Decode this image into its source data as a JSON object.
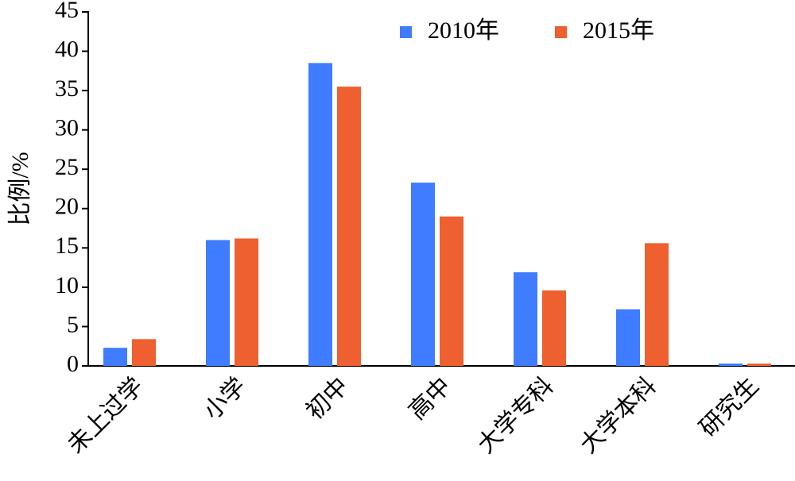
{
  "chart_data": {
    "type": "bar",
    "y_label": "比例/%",
    "categories": [
      "未上过学",
      "小学",
      "初中",
      "高中",
      "大学专科",
      "大学本科",
      "研究生"
    ],
    "series": [
      {
        "name": "2010年",
        "color": "#3f7cff",
        "values": [
          2.3,
          16.0,
          38.5,
          23.3,
          11.9,
          7.2,
          0.3
        ]
      },
      {
        "name": "2015年",
        "color": "#ee6030",
        "values": [
          3.4,
          16.2,
          35.5,
          19.0,
          9.6,
          15.6,
          0.3
        ]
      }
    ],
    "ylim": [
      0,
      45
    ],
    "yticks": [
      0,
      5,
      10,
      15,
      20,
      25,
      30,
      35,
      40,
      45
    ]
  }
}
